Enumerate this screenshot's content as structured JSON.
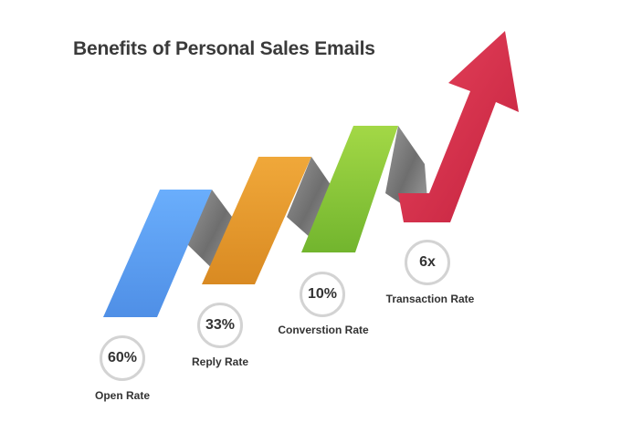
{
  "title": "Benefits of Personal Sales Emails",
  "colors": {
    "blue": "#5ea2f5",
    "orange": "#e89a30",
    "green": "#8fcc3a",
    "red": "#d9304c",
    "connector": "#8c8c8c",
    "circle_border": "#d3d3d3",
    "text": "#333333"
  },
  "stats": [
    {
      "value": "60%",
      "label": "Open Rate"
    },
    {
      "value": "33%",
      "label": "Reply Rate"
    },
    {
      "value": "10%",
      "label": "Converstion Rate"
    },
    {
      "value": "6x",
      "label": "Transaction Rate"
    }
  ]
}
